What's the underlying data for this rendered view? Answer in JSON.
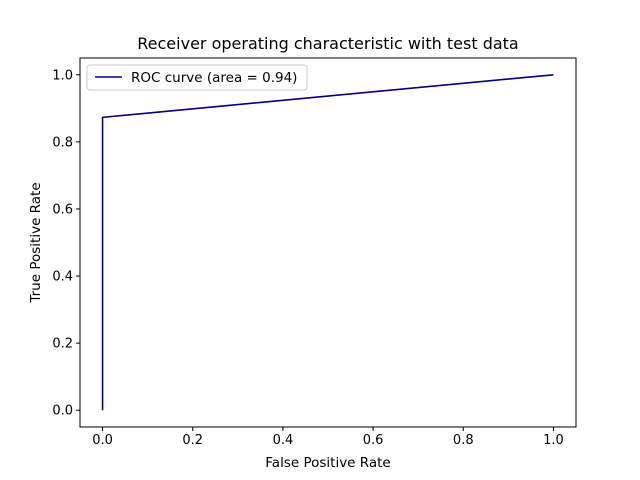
{
  "chart_data": {
    "type": "line",
    "title": "Receiver operating characteristic with test data",
    "xlabel": "False Positive Rate",
    "ylabel": "True Positive Rate",
    "xlim": [
      -0.05,
      1.05
    ],
    "ylim": [
      -0.05,
      1.05
    ],
    "xticks": [
      0.0,
      0.2,
      0.4,
      0.6,
      0.8,
      1.0
    ],
    "yticks": [
      0.0,
      0.2,
      0.4,
      0.6,
      0.8,
      1.0
    ],
    "xtick_labels": [
      "0.0",
      "0.2",
      "0.4",
      "0.6",
      "0.8",
      "1.0"
    ],
    "ytick_labels": [
      "0.0",
      "0.2",
      "0.4",
      "0.6",
      "0.8",
      "1.0"
    ],
    "grid": false,
    "legend_position": "upper left",
    "series": [
      {
        "name": "ROC curve (area = 0.94)",
        "color": "#000080",
        "x": [
          0.0,
          0.0,
          1.0
        ],
        "y": [
          0.0,
          0.873,
          1.0
        ]
      }
    ]
  }
}
